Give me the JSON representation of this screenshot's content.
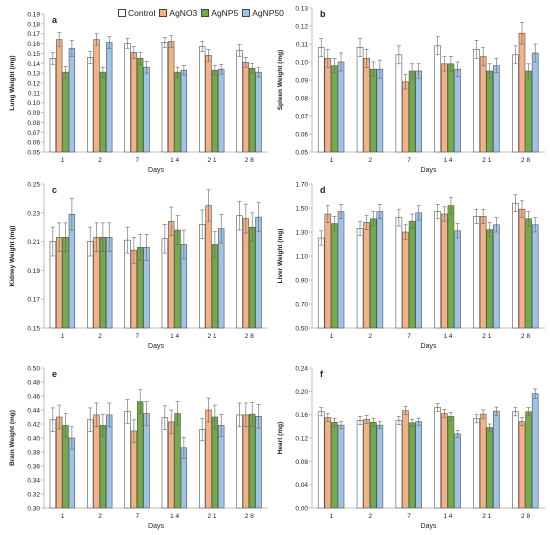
{
  "chart_data": [
    {
      "type": "bar",
      "panel_label": "a",
      "ylabel": "Lung Weight (mg)",
      "xlabel": "Days",
      "categories": [
        "1",
        "2",
        "7",
        "1 4",
        "2 1",
        "2 8"
      ],
      "ylim": [
        0.05,
        0.19
      ],
      "yticks": [
        0.05,
        0.06,
        0.07,
        0.08,
        0.09,
        0.1,
        0.11,
        0.12,
        0.13,
        0.14,
        0.15,
        0.16,
        0.17,
        0.18,
        0.19
      ],
      "ytick_labels": [
        "0.05",
        "0.06",
        "0.07",
        "0.08",
        "0.09",
        "0.10",
        "0.11",
        "0.12",
        "0.13",
        "0.14",
        "0.15",
        "0.16",
        "0.17",
        "0.18",
        "0.19"
      ],
      "series": [
        {
          "name": "Control",
          "values": [
            0.145,
            0.146,
            0.16,
            0.161,
            0.157,
            0.153
          ],
          "errors": [
            0.006,
            0.006,
            0.005,
            0.005,
            0.005,
            0.006
          ]
        },
        {
          "name": "AgNO3",
          "values": [
            0.164,
            0.164,
            0.151,
            0.162,
            0.148,
            0.141
          ],
          "errors": [
            0.007,
            0.006,
            0.006,
            0.006,
            0.006,
            0.005
          ]
        },
        {
          "name": "AgNP5",
          "values": [
            0.131,
            0.131,
            0.145,
            0.131,
            0.133,
            0.135
          ],
          "errors": [
            0.006,
            0.005,
            0.006,
            0.005,
            0.005,
            0.005
          ]
        },
        {
          "name": "AgNP50",
          "values": [
            0.155,
            0.161,
            0.136,
            0.133,
            0.134,
            0.131
          ],
          "errors": [
            0.008,
            0.006,
            0.006,
            0.005,
            0.005,
            0.005
          ]
        }
      ]
    },
    {
      "type": "bar",
      "panel_label": "b",
      "ylabel": "Spleen Weight (mg)",
      "xlabel": "Days",
      "categories": [
        "1",
        "2",
        "7",
        "1 4",
        "2 1",
        "2 8"
      ],
      "ylim": [
        0.05,
        0.13
      ],
      "yticks": [
        0.05,
        0.06,
        0.07,
        0.08,
        0.09,
        0.1,
        0.11,
        0.12,
        0.13
      ],
      "ytick_labels": [
        "0.05",
        "0.06",
        "0.07",
        "0.08",
        "0.09",
        "0.10",
        "0.11",
        "0.12",
        "0.13"
      ],
      "series": [
        {
          "name": "Control",
          "values": [
            0.108,
            0.108,
            0.104,
            0.109,
            0.107,
            0.104
          ],
          "errors": [
            0.005,
            0.005,
            0.005,
            0.005,
            0.005,
            0.005
          ]
        },
        {
          "name": "AgNO3",
          "values": [
            0.102,
            0.102,
            0.089,
            0.099,
            0.103,
            0.116
          ],
          "errors": [
            0.005,
            0.005,
            0.004,
            0.004,
            0.005,
            0.006
          ]
        },
        {
          "name": "AgNP5",
          "values": [
            0.098,
            0.096,
            0.095,
            0.099,
            0.095,
            0.095
          ],
          "errors": [
            0.004,
            0.004,
            0.004,
            0.004,
            0.004,
            0.004
          ]
        },
        {
          "name": "AgNP50",
          "values": [
            0.1,
            0.096,
            0.095,
            0.096,
            0.098,
            0.105
          ],
          "errors": [
            0.005,
            0.005,
            0.004,
            0.004,
            0.004,
            0.005
          ]
        }
      ]
    },
    {
      "type": "bar",
      "panel_label": "c",
      "ylabel": "Kidney Weight (mg)",
      "xlabel": "Days",
      "categories": [
        "1",
        "2",
        "7",
        "1 4",
        "2 1",
        "2 8"
      ],
      "ylim": [
        0.15,
        0.25
      ],
      "yticks": [
        0.15,
        0.17,
        0.19,
        0.21,
        0.23,
        0.25
      ],
      "ytick_labels": [
        "0.15",
        "0.17",
        "0.19",
        "0.21",
        "0.23",
        "0.25"
      ],
      "series": [
        {
          "name": "Control",
          "values": [
            0.21,
            0.21,
            0.211,
            0.212,
            0.222,
            0.228
          ],
          "errors": [
            0.01,
            0.01,
            0.009,
            0.01,
            0.01,
            0.01
          ]
        },
        {
          "name": "AgNO3",
          "values": [
            0.213,
            0.213,
            0.204,
            0.224,
            0.235,
            0.226
          ],
          "errors": [
            0.01,
            0.01,
            0.009,
            0.01,
            0.011,
            0.01
          ]
        },
        {
          "name": "AgNP5",
          "values": [
            0.213,
            0.213,
            0.206,
            0.218,
            0.208,
            0.22
          ],
          "errors": [
            0.01,
            0.01,
            0.009,
            0.01,
            0.009,
            0.01
          ]
        },
        {
          "name": "AgNP50",
          "values": [
            0.229,
            0.213,
            0.206,
            0.208,
            0.219,
            0.227
          ],
          "errors": [
            0.011,
            0.01,
            0.009,
            0.01,
            0.01,
            0.01
          ]
        }
      ]
    },
    {
      "type": "bar",
      "panel_label": "d",
      "ylabel": "Liver Weight (mg)",
      "xlabel": "Days",
      "categories": [
        "1",
        "2",
        "7",
        "1 4",
        "2 1",
        "2 8"
      ],
      "ylim": [
        0.5,
        1.7
      ],
      "yticks": [
        0.5,
        0.7,
        0.9,
        1.1,
        1.3,
        1.5,
        1.7
      ],
      "ytick_labels": [
        "0.50",
        "0.70",
        "0.90",
        "1.10",
        "1.30",
        "1.50",
        "1.70"
      ],
      "series": [
        {
          "name": "Control",
          "values": [
            1.25,
            1.33,
            1.42,
            1.47,
            1.43,
            1.54
          ],
          "errors": [
            0.06,
            0.06,
            0.07,
            0.06,
            0.06,
            0.07
          ]
        },
        {
          "name": "AgNO3",
          "values": [
            1.45,
            1.38,
            1.3,
            1.45,
            1.43,
            1.49
          ],
          "errors": [
            0.07,
            0.06,
            0.06,
            0.06,
            0.06,
            0.07
          ]
        },
        {
          "name": "AgNP5",
          "values": [
            1.37,
            1.41,
            1.39,
            1.52,
            1.32,
            1.41
          ],
          "errors": [
            0.06,
            0.06,
            0.06,
            0.07,
            0.06,
            0.06
          ]
        },
        {
          "name": "AgNP50",
          "values": [
            1.47,
            1.47,
            1.46,
            1.31,
            1.36,
            1.36
          ],
          "errors": [
            0.06,
            0.06,
            0.06,
            0.06,
            0.06,
            0.06
          ]
        }
      ]
    },
    {
      "type": "bar",
      "panel_label": "e",
      "ylabel": "Brain Weight (mg)",
      "xlabel": "Days",
      "categories": [
        "1",
        "2",
        "7",
        "1 4",
        "2 1",
        "2 8"
      ],
      "ylim": [
        0.3,
        0.5
      ],
      "yticks": [
        0.3,
        0.32,
        0.34,
        0.36,
        0.38,
        0.4,
        0.42,
        0.44,
        0.46,
        0.48,
        0.5
      ],
      "ytick_labels": [
        "0.30",
        "0.32",
        "0.34",
        "0.36",
        "0.38",
        "0.40",
        "0.42",
        "0.44",
        "0.46",
        "0.48",
        "0.50"
      ],
      "series": [
        {
          "name": "Control",
          "values": [
            0.426,
            0.426,
            0.438,
            0.429,
            0.412,
            0.433
          ],
          "errors": [
            0.017,
            0.017,
            0.017,
            0.017,
            0.016,
            0.017
          ]
        },
        {
          "name": "AgNO3",
          "values": [
            0.43,
            0.433,
            0.41,
            0.423,
            0.44,
            0.433
          ],
          "errors": [
            0.017,
            0.017,
            0.016,
            0.017,
            0.017,
            0.017
          ]
        },
        {
          "name": "AgNP5",
          "values": [
            0.418,
            0.418,
            0.452,
            0.435,
            0.43,
            0.434
          ],
          "errors": [
            0.017,
            0.016,
            0.017,
            0.017,
            0.017,
            0.017
          ]
        },
        {
          "name": "AgNP50",
          "values": [
            0.4,
            0.433,
            0.435,
            0.386,
            0.418,
            0.431
          ],
          "errors": [
            0.016,
            0.017,
            0.017,
            0.015,
            0.016,
            0.017
          ]
        }
      ]
    },
    {
      "type": "bar",
      "panel_label": "f",
      "ylabel": "Heart (mg)",
      "xlabel": "Days",
      "categories": [
        "1",
        "2",
        "7",
        "1 4",
        "2 1",
        "2 8"
      ],
      "ylim": [
        0.0,
        0.24
      ],
      "yticks": [
        0.0,
        0.04,
        0.08,
        0.12,
        0.16,
        0.2,
        0.24
      ],
      "ytick_labels": [
        "0.00",
        "0.04",
        "0.08",
        "0.12",
        "0.16",
        "0.20",
        "0.24"
      ],
      "series": [
        {
          "name": "Control",
          "values": [
            0.165,
            0.15,
            0.15,
            0.172,
            0.153,
            0.165
          ],
          "errors": [
            0.007,
            0.007,
            0.007,
            0.007,
            0.007,
            0.007
          ]
        },
        {
          "name": "AgNO3",
          "values": [
            0.155,
            0.152,
            0.167,
            0.162,
            0.161,
            0.148
          ],
          "errors": [
            0.007,
            0.007,
            0.007,
            0.007,
            0.007,
            0.007
          ]
        },
        {
          "name": "AgNP5",
          "values": [
            0.147,
            0.147,
            0.146,
            0.157,
            0.138,
            0.165
          ],
          "errors": [
            0.007,
            0.007,
            0.006,
            0.007,
            0.006,
            0.007
          ]
        },
        {
          "name": "AgNP50",
          "values": [
            0.142,
            0.142,
            0.148,
            0.127,
            0.166,
            0.196
          ],
          "errors": [
            0.006,
            0.006,
            0.006,
            0.006,
            0.007,
            0.008
          ]
        }
      ]
    }
  ],
  "legend": {
    "items": [
      {
        "name": "Control",
        "color": "#ffffff"
      },
      {
        "name": "AgNO3",
        "color": "#f4b183"
      },
      {
        "name": "AgNP5",
        "color": "#70ad47"
      },
      {
        "name": "AgNP50",
        "color": "#9dc3e6"
      }
    ]
  },
  "style": {
    "bar_stroke": "#555555",
    "axis_color": "#bfbfbf",
    "error_color": "#666666",
    "text_color": "#222222"
  }
}
